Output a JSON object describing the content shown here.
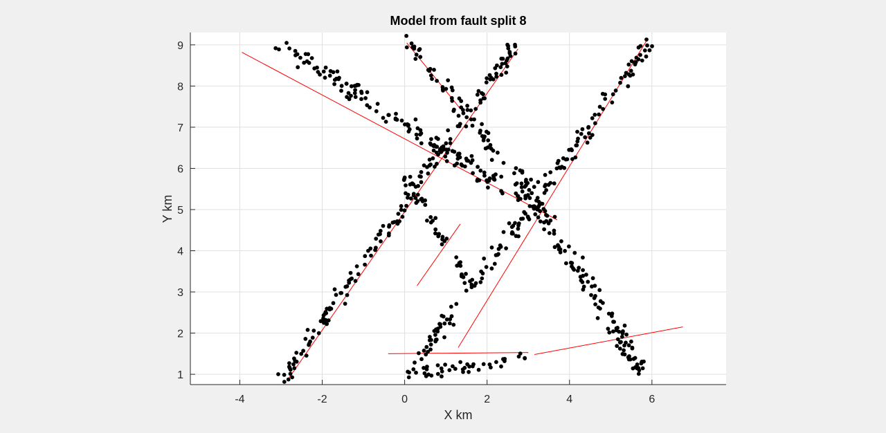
{
  "chart_data": {
    "type": "scatter",
    "title": "Model from fault split 8",
    "xlabel": "X km",
    "ylabel": "Y km",
    "xlim": [
      -5.2,
      7.8
    ],
    "ylim": [
      0.75,
      9.3
    ],
    "xticks": [
      -4,
      -2,
      0,
      2,
      4,
      6
    ],
    "yticks": [
      1,
      2,
      3,
      4,
      5,
      6,
      7,
      8,
      9
    ],
    "xtick_labels": [
      "-4",
      "-2",
      "0",
      "2",
      "4",
      "6"
    ],
    "ytick_labels": [
      "1",
      "2",
      "3",
      "4",
      "5",
      "6",
      "7",
      "8",
      "9"
    ],
    "grid": true,
    "legend": "none",
    "colors": {
      "points": "#000000",
      "fault_lines": "#ff0000",
      "plot_bg": "#ffffff",
      "figure_bg": "#f0f0f0"
    },
    "fault_lines": [
      {
        "x1": -3.95,
        "y1": 8.82,
        "x2": 3.7,
        "y2": 4.75
      },
      {
        "x1": -2.85,
        "y1": 0.85,
        "x2": 2.75,
        "y2": 8.9
      },
      {
        "x1": 1.3,
        "y1": 1.65,
        "x2": 5.9,
        "y2": 9.15
      },
      {
        "x1": 0.05,
        "y1": 9.05,
        "x2": 1.35,
        "y2": 7.45
      },
      {
        "x1": 0.3,
        "y1": 3.15,
        "x2": 1.35,
        "y2": 4.65
      },
      {
        "x1": -0.4,
        "y1": 1.5,
        "x2": 3.0,
        "y2": 1.53
      },
      {
        "x1": 3.15,
        "y1": 1.48,
        "x2": 6.75,
        "y2": 2.15
      }
    ],
    "point_clusters": [
      {
        "x1": -3.1,
        "y1": 9.05,
        "x2": 3.4,
        "y2": 4.9,
        "n": 150,
        "spread": 0.35
      },
      {
        "x1": -3.0,
        "y1": 0.85,
        "x2": 2.8,
        "y2": 9.15,
        "n": 175,
        "spread": 0.3
      },
      {
        "x1": 0.0,
        "y1": 0.9,
        "x2": 6.0,
        "y2": 9.1,
        "n": 165,
        "spread": 0.3
      },
      {
        "x1": 0.0,
        "y1": 9.2,
        "x2": 2.5,
        "y2": 6.0,
        "n": 55,
        "spread": 0.28
      },
      {
        "x1": 2.6,
        "y1": 6.0,
        "x2": 5.8,
        "y2": 1.0,
        "n": 130,
        "spread": 0.38
      },
      {
        "x1": 0.0,
        "y1": 5.8,
        "x2": 1.5,
        "y2": 3.3,
        "n": 40,
        "spread": 0.22
      },
      {
        "x1": 0.0,
        "y1": 1.0,
        "x2": 3.0,
        "y2": 1.35,
        "n": 40,
        "spread": 0.3
      }
    ]
  }
}
